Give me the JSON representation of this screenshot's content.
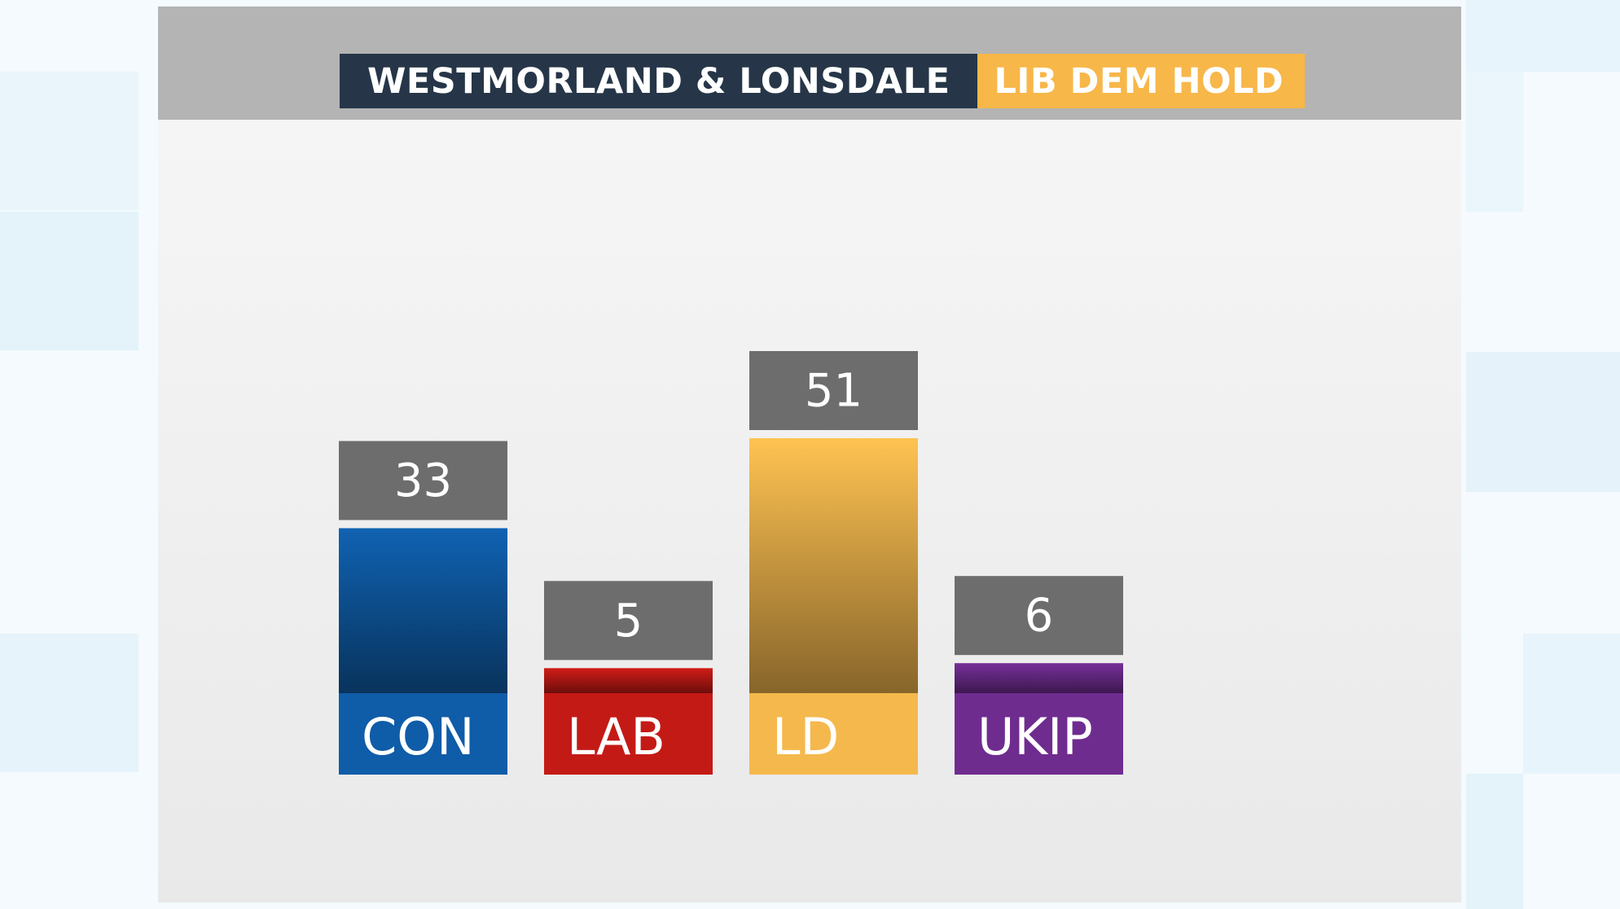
{
  "header": {
    "constituency": "WESTMORLAND & LONSDALE",
    "result": "LIB DEM HOLD",
    "constituency_bg": "#263648",
    "result_bg": "#f7b749"
  },
  "chart_data": {
    "type": "bar",
    "title": "WESTMORLAND & LONSDALE",
    "subtitle": "LIB DEM HOLD",
    "categories": [
      "CON",
      "LAB",
      "LD",
      "UKIP"
    ],
    "values": [
      33,
      5,
      51,
      6
    ],
    "colors": [
      "#0f5ca8",
      "#c41a16",
      "#f5b84d",
      "#6f2c8f"
    ],
    "value_label_bg": "#6d6d6d",
    "grid": false,
    "legend": "none"
  }
}
